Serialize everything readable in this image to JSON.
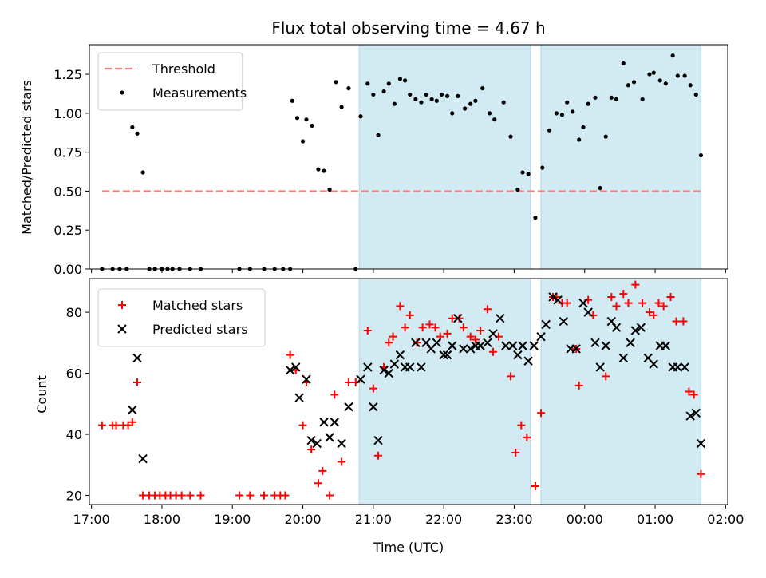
{
  "figure": {
    "title": "Flux total observing time = 4.67 h",
    "xlabel": "Time (UTC)",
    "xtick_labels": [
      "17:00",
      "18:00",
      "19:00",
      "20:00",
      "21:00",
      "22:00",
      "23:00",
      "00:00",
      "01:00",
      "02:00"
    ],
    "xticks_hours": [
      17,
      18,
      19,
      20,
      21,
      22,
      23,
      24,
      25,
      26
    ],
    "xlim_hours": [
      16.97,
      26.03
    ],
    "shaded_band_color": "#add8e6",
    "shaded_intervals_hours": [
      [
        20.8,
        23.23
      ],
      [
        23.38,
        25.65
      ]
    ]
  },
  "chart_data": [
    {
      "type": "scatter",
      "ylabel": "Matched/Predicted stars",
      "ylim": [
        0,
        1.44
      ],
      "yticks": [
        0,
        0.25,
        0.5,
        0.75,
        1.0,
        1.25
      ],
      "ytick_labels": [
        "0.00",
        "0.25",
        "0.50",
        "0.75",
        "1.00",
        "1.25"
      ],
      "legend_position": "top-left",
      "threshold": {
        "name": "Threshold",
        "value": 0.5,
        "x_range": [
          17.15,
          25.65
        ],
        "color": "#ff7f7f",
        "style": "dashed"
      },
      "series": [
        {
          "name": "Measurements",
          "color": "#000000",
          "marker": "dot",
          "points": [
            [
              17.15,
              0.0
            ],
            [
              17.3,
              0.0
            ],
            [
              17.4,
              0.0
            ],
            [
              17.5,
              0.0
            ],
            [
              17.58,
              0.91
            ],
            [
              17.65,
              0.87
            ],
            [
              17.73,
              0.62
            ],
            [
              17.82,
              0.0
            ],
            [
              17.9,
              0.0
            ],
            [
              18.0,
              0.0
            ],
            [
              18.08,
              0.0
            ],
            [
              18.15,
              0.0
            ],
            [
              18.25,
              0.0
            ],
            [
              18.4,
              0.0
            ],
            [
              18.55,
              0.0
            ],
            [
              19.1,
              0.0
            ],
            [
              19.25,
              0.0
            ],
            [
              19.45,
              0.0
            ],
            [
              19.6,
              0.0
            ],
            [
              19.72,
              0.0
            ],
            [
              19.82,
              0.0
            ],
            [
              19.85,
              1.08
            ],
            [
              19.92,
              0.97
            ],
            [
              20.0,
              0.82
            ],
            [
              20.05,
              0.96
            ],
            [
              20.13,
              0.92
            ],
            [
              20.22,
              0.64
            ],
            [
              20.3,
              0.63
            ],
            [
              20.38,
              0.51
            ],
            [
              20.47,
              1.2
            ],
            [
              20.55,
              1.04
            ],
            [
              20.65,
              1.16
            ],
            [
              20.75,
              0.0
            ],
            [
              20.82,
              0.98
            ],
            [
              20.92,
              1.19
            ],
            [
              21.0,
              1.12
            ],
            [
              21.07,
              0.86
            ],
            [
              21.15,
              1.14
            ],
            [
              21.22,
              1.19
            ],
            [
              21.3,
              1.06
            ],
            [
              21.38,
              1.22
            ],
            [
              21.45,
              1.21
            ],
            [
              21.52,
              1.12
            ],
            [
              21.6,
              1.09
            ],
            [
              21.68,
              1.07
            ],
            [
              21.75,
              1.12
            ],
            [
              21.83,
              1.09
            ],
            [
              21.9,
              1.08
            ],
            [
              21.97,
              1.12
            ],
            [
              22.05,
              1.11
            ],
            [
              22.12,
              1.0
            ],
            [
              22.2,
              1.11
            ],
            [
              22.3,
              1.03
            ],
            [
              22.38,
              1.06
            ],
            [
              22.45,
              1.08
            ],
            [
              22.55,
              1.16
            ],
            [
              22.65,
              1.0
            ],
            [
              22.72,
              0.96
            ],
            [
              22.85,
              1.07
            ],
            [
              22.95,
              0.85
            ],
            [
              23.05,
              0.51
            ],
            [
              23.12,
              0.62
            ],
            [
              23.2,
              0.61
            ],
            [
              23.3,
              0.33
            ],
            [
              23.4,
              0.65
            ],
            [
              23.5,
              0.89
            ],
            [
              23.6,
              1.0
            ],
            [
              23.68,
              0.99
            ],
            [
              23.75,
              1.07
            ],
            [
              23.83,
              1.01
            ],
            [
              23.92,
              0.83
            ],
            [
              23.98,
              0.91
            ],
            [
              24.05,
              1.06
            ],
            [
              24.15,
              1.1
            ],
            [
              24.22,
              0.52
            ],
            [
              24.3,
              0.85
            ],
            [
              24.38,
              1.1
            ],
            [
              24.45,
              1.09
            ],
            [
              24.55,
              1.32
            ],
            [
              24.62,
              1.18
            ],
            [
              24.7,
              1.2
            ],
            [
              24.82,
              1.09
            ],
            [
              24.92,
              1.25
            ],
            [
              24.98,
              1.26
            ],
            [
              25.07,
              1.21
            ],
            [
              25.15,
              1.19
            ],
            [
              25.25,
              1.37
            ],
            [
              25.32,
              1.24
            ],
            [
              25.42,
              1.24
            ],
            [
              25.5,
              1.18
            ],
            [
              25.58,
              1.12
            ],
            [
              25.65,
              0.73
            ]
          ]
        }
      ]
    },
    {
      "type": "scatter",
      "ylabel": "Count",
      "ylim": [
        17,
        91
      ],
      "yticks": [
        20,
        40,
        60,
        80
      ],
      "ytick_labels": [
        "20",
        "40",
        "60",
        "80"
      ],
      "legend_position": "top-left",
      "series": [
        {
          "name": "Matched stars",
          "color": "#ff0000",
          "marker": "plus",
          "points": [
            [
              17.15,
              43
            ],
            [
              17.3,
              43
            ],
            [
              17.35,
              43
            ],
            [
              17.45,
              43
            ],
            [
              17.52,
              43
            ],
            [
              17.58,
              44
            ],
            [
              17.65,
              57
            ],
            [
              17.73,
              20
            ],
            [
              17.82,
              20
            ],
            [
              17.9,
              20
            ],
            [
              17.97,
              20
            ],
            [
              18.05,
              20
            ],
            [
              18.12,
              20
            ],
            [
              18.2,
              20
            ],
            [
              18.28,
              20
            ],
            [
              18.4,
              20
            ],
            [
              18.55,
              20
            ],
            [
              19.1,
              20
            ],
            [
              19.25,
              20
            ],
            [
              19.45,
              20
            ],
            [
              19.6,
              20
            ],
            [
              19.68,
              20
            ],
            [
              19.75,
              20
            ],
            [
              19.82,
              66
            ],
            [
              19.9,
              61
            ],
            [
              20.0,
              43
            ],
            [
              20.05,
              57
            ],
            [
              20.12,
              35
            ],
            [
              20.22,
              24
            ],
            [
              20.28,
              28
            ],
            [
              20.38,
              20
            ],
            [
              20.45,
              53
            ],
            [
              20.55,
              31
            ],
            [
              20.65,
              57
            ],
            [
              20.75,
              57
            ],
            [
              20.92,
              74
            ],
            [
              21.0,
              55
            ],
            [
              21.07,
              33
            ],
            [
              21.15,
              62
            ],
            [
              21.22,
              70
            ],
            [
              21.28,
              72
            ],
            [
              21.38,
              82
            ],
            [
              21.45,
              75
            ],
            [
              21.52,
              79
            ],
            [
              21.62,
              70
            ],
            [
              21.7,
              75
            ],
            [
              21.8,
              76
            ],
            [
              21.88,
              75
            ],
            [
              21.95,
              72
            ],
            [
              22.05,
              73
            ],
            [
              22.12,
              78
            ],
            [
              22.22,
              78
            ],
            [
              22.28,
              75
            ],
            [
              22.38,
              72
            ],
            [
              22.45,
              71
            ],
            [
              22.52,
              74
            ],
            [
              22.62,
              81
            ],
            [
              22.7,
              67
            ],
            [
              22.78,
              72
            ],
            [
              22.95,
              59
            ],
            [
              23.02,
              34
            ],
            [
              23.1,
              43
            ],
            [
              23.18,
              39
            ],
            [
              23.3,
              23
            ],
            [
              23.38,
              47
            ],
            [
              23.55,
              85
            ],
            [
              23.6,
              85
            ],
            [
              23.68,
              83
            ],
            [
              23.75,
              83
            ],
            [
              23.88,
              68
            ],
            [
              23.92,
              56
            ],
            [
              24.05,
              84
            ],
            [
              24.12,
              79
            ],
            [
              24.3,
              59
            ],
            [
              24.38,
              85
            ],
            [
              24.45,
              82
            ],
            [
              24.55,
              86
            ],
            [
              24.62,
              83
            ],
            [
              24.72,
              89
            ],
            [
              24.82,
              83
            ],
            [
              24.92,
              80
            ],
            [
              24.98,
              79
            ],
            [
              25.05,
              83
            ],
            [
              25.12,
              82
            ],
            [
              25.22,
              85
            ],
            [
              25.3,
              77
            ],
            [
              25.4,
              77
            ],
            [
              25.48,
              54
            ],
            [
              25.55,
              53
            ],
            [
              25.65,
              27
            ]
          ]
        },
        {
          "name": "Predicted stars",
          "color": "#000000",
          "marker": "x",
          "points": [
            [
              17.58,
              48
            ],
            [
              17.65,
              65
            ],
            [
              17.73,
              32
            ],
            [
              19.82,
              61
            ],
            [
              19.9,
              62
            ],
            [
              19.95,
              52
            ],
            [
              20.05,
              58
            ],
            [
              20.12,
              38
            ],
            [
              20.2,
              37
            ],
            [
              20.3,
              44
            ],
            [
              20.38,
              39
            ],
            [
              20.45,
              44
            ],
            [
              20.55,
              37
            ],
            [
              20.65,
              49
            ],
            [
              20.82,
              58
            ],
            [
              20.92,
              62
            ],
            [
              21.0,
              49
            ],
            [
              21.07,
              38
            ],
            [
              21.15,
              61
            ],
            [
              21.22,
              60
            ],
            [
              21.3,
              63
            ],
            [
              21.38,
              66
            ],
            [
              21.45,
              62
            ],
            [
              21.52,
              62
            ],
            [
              21.6,
              70
            ],
            [
              21.68,
              62
            ],
            [
              21.75,
              70
            ],
            [
              21.82,
              68
            ],
            [
              21.9,
              70
            ],
            [
              22.0,
              66
            ],
            [
              22.05,
              66
            ],
            [
              22.12,
              69
            ],
            [
              22.2,
              78
            ],
            [
              22.28,
              68
            ],
            [
              22.38,
              68
            ],
            [
              22.45,
              69
            ],
            [
              22.52,
              69
            ],
            [
              22.62,
              70
            ],
            [
              22.7,
              73
            ],
            [
              22.8,
              78
            ],
            [
              22.88,
              69
            ],
            [
              22.98,
              69
            ],
            [
              23.05,
              66
            ],
            [
              23.12,
              69
            ],
            [
              23.2,
              64
            ],
            [
              23.28,
              69
            ],
            [
              23.38,
              72
            ],
            [
              23.45,
              76
            ],
            [
              23.55,
              85
            ],
            [
              23.62,
              84
            ],
            [
              23.7,
              77
            ],
            [
              23.8,
              68
            ],
            [
              23.88,
              68
            ],
            [
              23.98,
              83
            ],
            [
              24.05,
              80
            ],
            [
              24.15,
              70
            ],
            [
              24.22,
              62
            ],
            [
              24.3,
              69
            ],
            [
              24.38,
              77
            ],
            [
              24.45,
              75
            ],
            [
              24.55,
              65
            ],
            [
              24.65,
              70
            ],
            [
              24.72,
              74
            ],
            [
              24.8,
              75
            ],
            [
              24.9,
              65
            ],
            [
              24.98,
              63
            ],
            [
              25.07,
              69
            ],
            [
              25.15,
              69
            ],
            [
              25.25,
              62
            ],
            [
              25.32,
              62
            ],
            [
              25.42,
              62
            ],
            [
              25.5,
              46
            ],
            [
              25.58,
              47
            ],
            [
              25.65,
              37
            ]
          ]
        }
      ]
    }
  ]
}
